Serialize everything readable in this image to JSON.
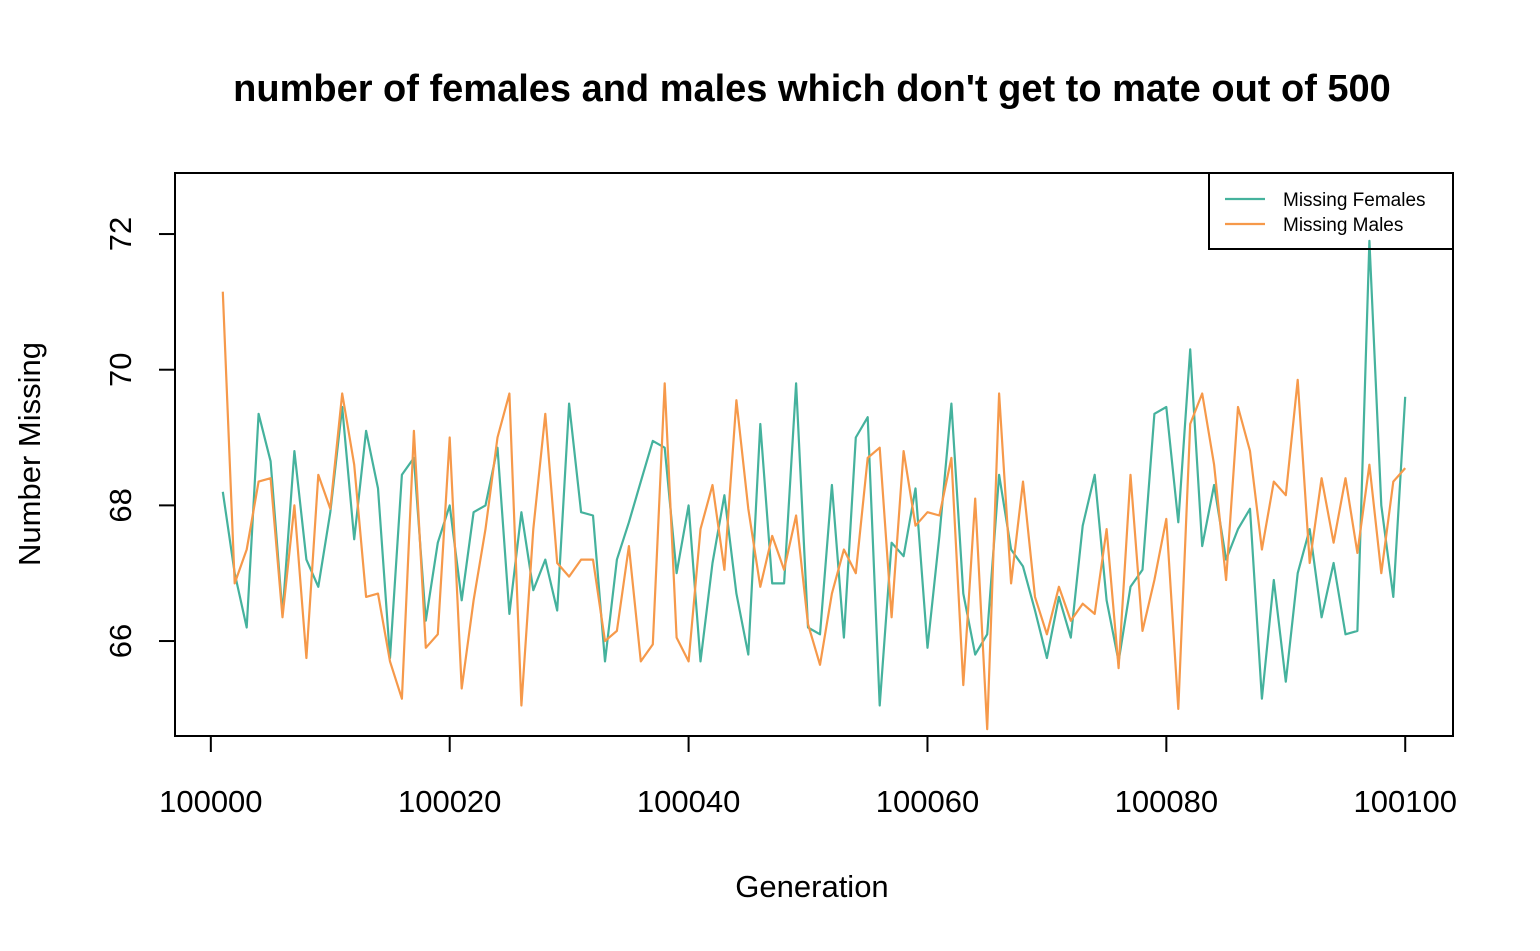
{
  "chart_data": {
    "type": "line",
    "title": "number of females and males which don't get to mate out of 500",
    "xlabel": "Generation",
    "ylabel": "Number Missing",
    "xlim": [
      99997,
      100104
    ],
    "ylim": [
      64.6,
      72.9
    ],
    "x_ticks": [
      100000,
      100020,
      100040,
      100060,
      100080,
      100100
    ],
    "y_ticks": [
      66,
      68,
      70,
      72
    ],
    "grid": false,
    "legend_position": "top-right",
    "x": [
      100001,
      100002,
      100003,
      100004,
      100005,
      100006,
      100007,
      100008,
      100009,
      100010,
      100011,
      100012,
      100013,
      100014,
      100015,
      100016,
      100017,
      100018,
      100019,
      100020,
      100021,
      100022,
      100023,
      100024,
      100025,
      100026,
      100027,
      100028,
      100029,
      100030,
      100031,
      100032,
      100033,
      100034,
      100035,
      100036,
      100037,
      100038,
      100039,
      100040,
      100041,
      100042,
      100043,
      100044,
      100045,
      100046,
      100047,
      100048,
      100049,
      100050,
      100051,
      100052,
      100053,
      100054,
      100055,
      100056,
      100057,
      100058,
      100059,
      100060,
      100061,
      100062,
      100063,
      100064,
      100065,
      100066,
      100067,
      100068,
      100069,
      100070,
      100071,
      100072,
      100073,
      100074,
      100075,
      100076,
      100077,
      100078,
      100079,
      100080,
      100081,
      100082,
      100083,
      100084,
      100085,
      100086,
      100087,
      100088,
      100089,
      100090,
      100091,
      100092,
      100093,
      100094,
      100095,
      100096,
      100097,
      100098,
      100099,
      100100
    ],
    "series": [
      {
        "name": "Missing Females",
        "color": "#45B29D",
        "values": [
          68.2,
          67.0,
          66.2,
          69.35,
          68.65,
          66.4,
          68.8,
          67.2,
          66.8,
          67.9,
          69.45,
          67.5,
          69.1,
          68.25,
          65.75,
          68.45,
          68.7,
          66.3,
          67.45,
          68.0,
          66.6,
          67.9,
          68.0,
          68.85,
          66.4,
          67.9,
          66.75,
          67.2,
          66.45,
          69.5,
          67.9,
          67.85,
          65.7,
          67.2,
          67.75,
          68.35,
          68.95,
          68.85,
          67.0,
          68.0,
          65.7,
          67.15,
          68.15,
          66.7,
          65.8,
          69.2,
          66.85,
          66.85,
          69.8,
          66.2,
          66.1,
          68.3,
          66.05,
          69.0,
          69.3,
          65.05,
          67.45,
          67.25,
          68.25,
          65.9,
          67.55,
          69.5,
          66.7,
          65.8,
          66.1,
          68.45,
          67.35,
          67.1,
          66.45,
          65.75,
          66.65,
          66.05,
          67.7,
          68.45,
          66.6,
          65.7,
          66.8,
          67.05,
          69.35,
          69.45,
          67.75,
          70.3,
          67.4,
          68.3,
          67.2,
          67.65,
          67.95,
          65.15,
          66.9,
          65.4,
          67.0,
          67.65,
          66.35,
          67.15,
          66.1,
          66.15,
          71.9,
          68.0,
          66.65,
          69.6
        ]
      },
      {
        "name": "Missing Males",
        "color": "#F6994A",
        "values": [
          71.15,
          66.85,
          67.35,
          68.35,
          68.4,
          66.35,
          68.0,
          65.75,
          68.45,
          67.95,
          69.65,
          68.6,
          66.65,
          66.7,
          65.7,
          65.15,
          69.1,
          65.9,
          66.1,
          69.0,
          65.3,
          66.6,
          67.65,
          69.0,
          69.65,
          65.05,
          67.65,
          69.35,
          67.15,
          66.95,
          67.2,
          67.2,
          66.0,
          66.15,
          67.4,
          65.7,
          65.95,
          69.8,
          66.05,
          65.7,
          67.65,
          68.3,
          67.05,
          69.55,
          67.95,
          66.8,
          67.55,
          67.05,
          67.85,
          66.25,
          65.65,
          66.7,
          67.35,
          67.0,
          68.7,
          68.85,
          66.35,
          68.8,
          67.7,
          67.9,
          67.85,
          68.7,
          65.35,
          68.1,
          64.7,
          69.65,
          66.85,
          68.35,
          66.65,
          66.1,
          66.8,
          66.3,
          66.55,
          66.4,
          67.65,
          65.6,
          68.45,
          66.15,
          66.9,
          67.8,
          65.0,
          69.2,
          69.65,
          68.6,
          66.9,
          69.45,
          68.8,
          67.35,
          68.35,
          68.15,
          69.85,
          67.15,
          68.4,
          67.45,
          68.4,
          67.3,
          68.6,
          67.0,
          68.35,
          68.55
        ]
      }
    ]
  }
}
